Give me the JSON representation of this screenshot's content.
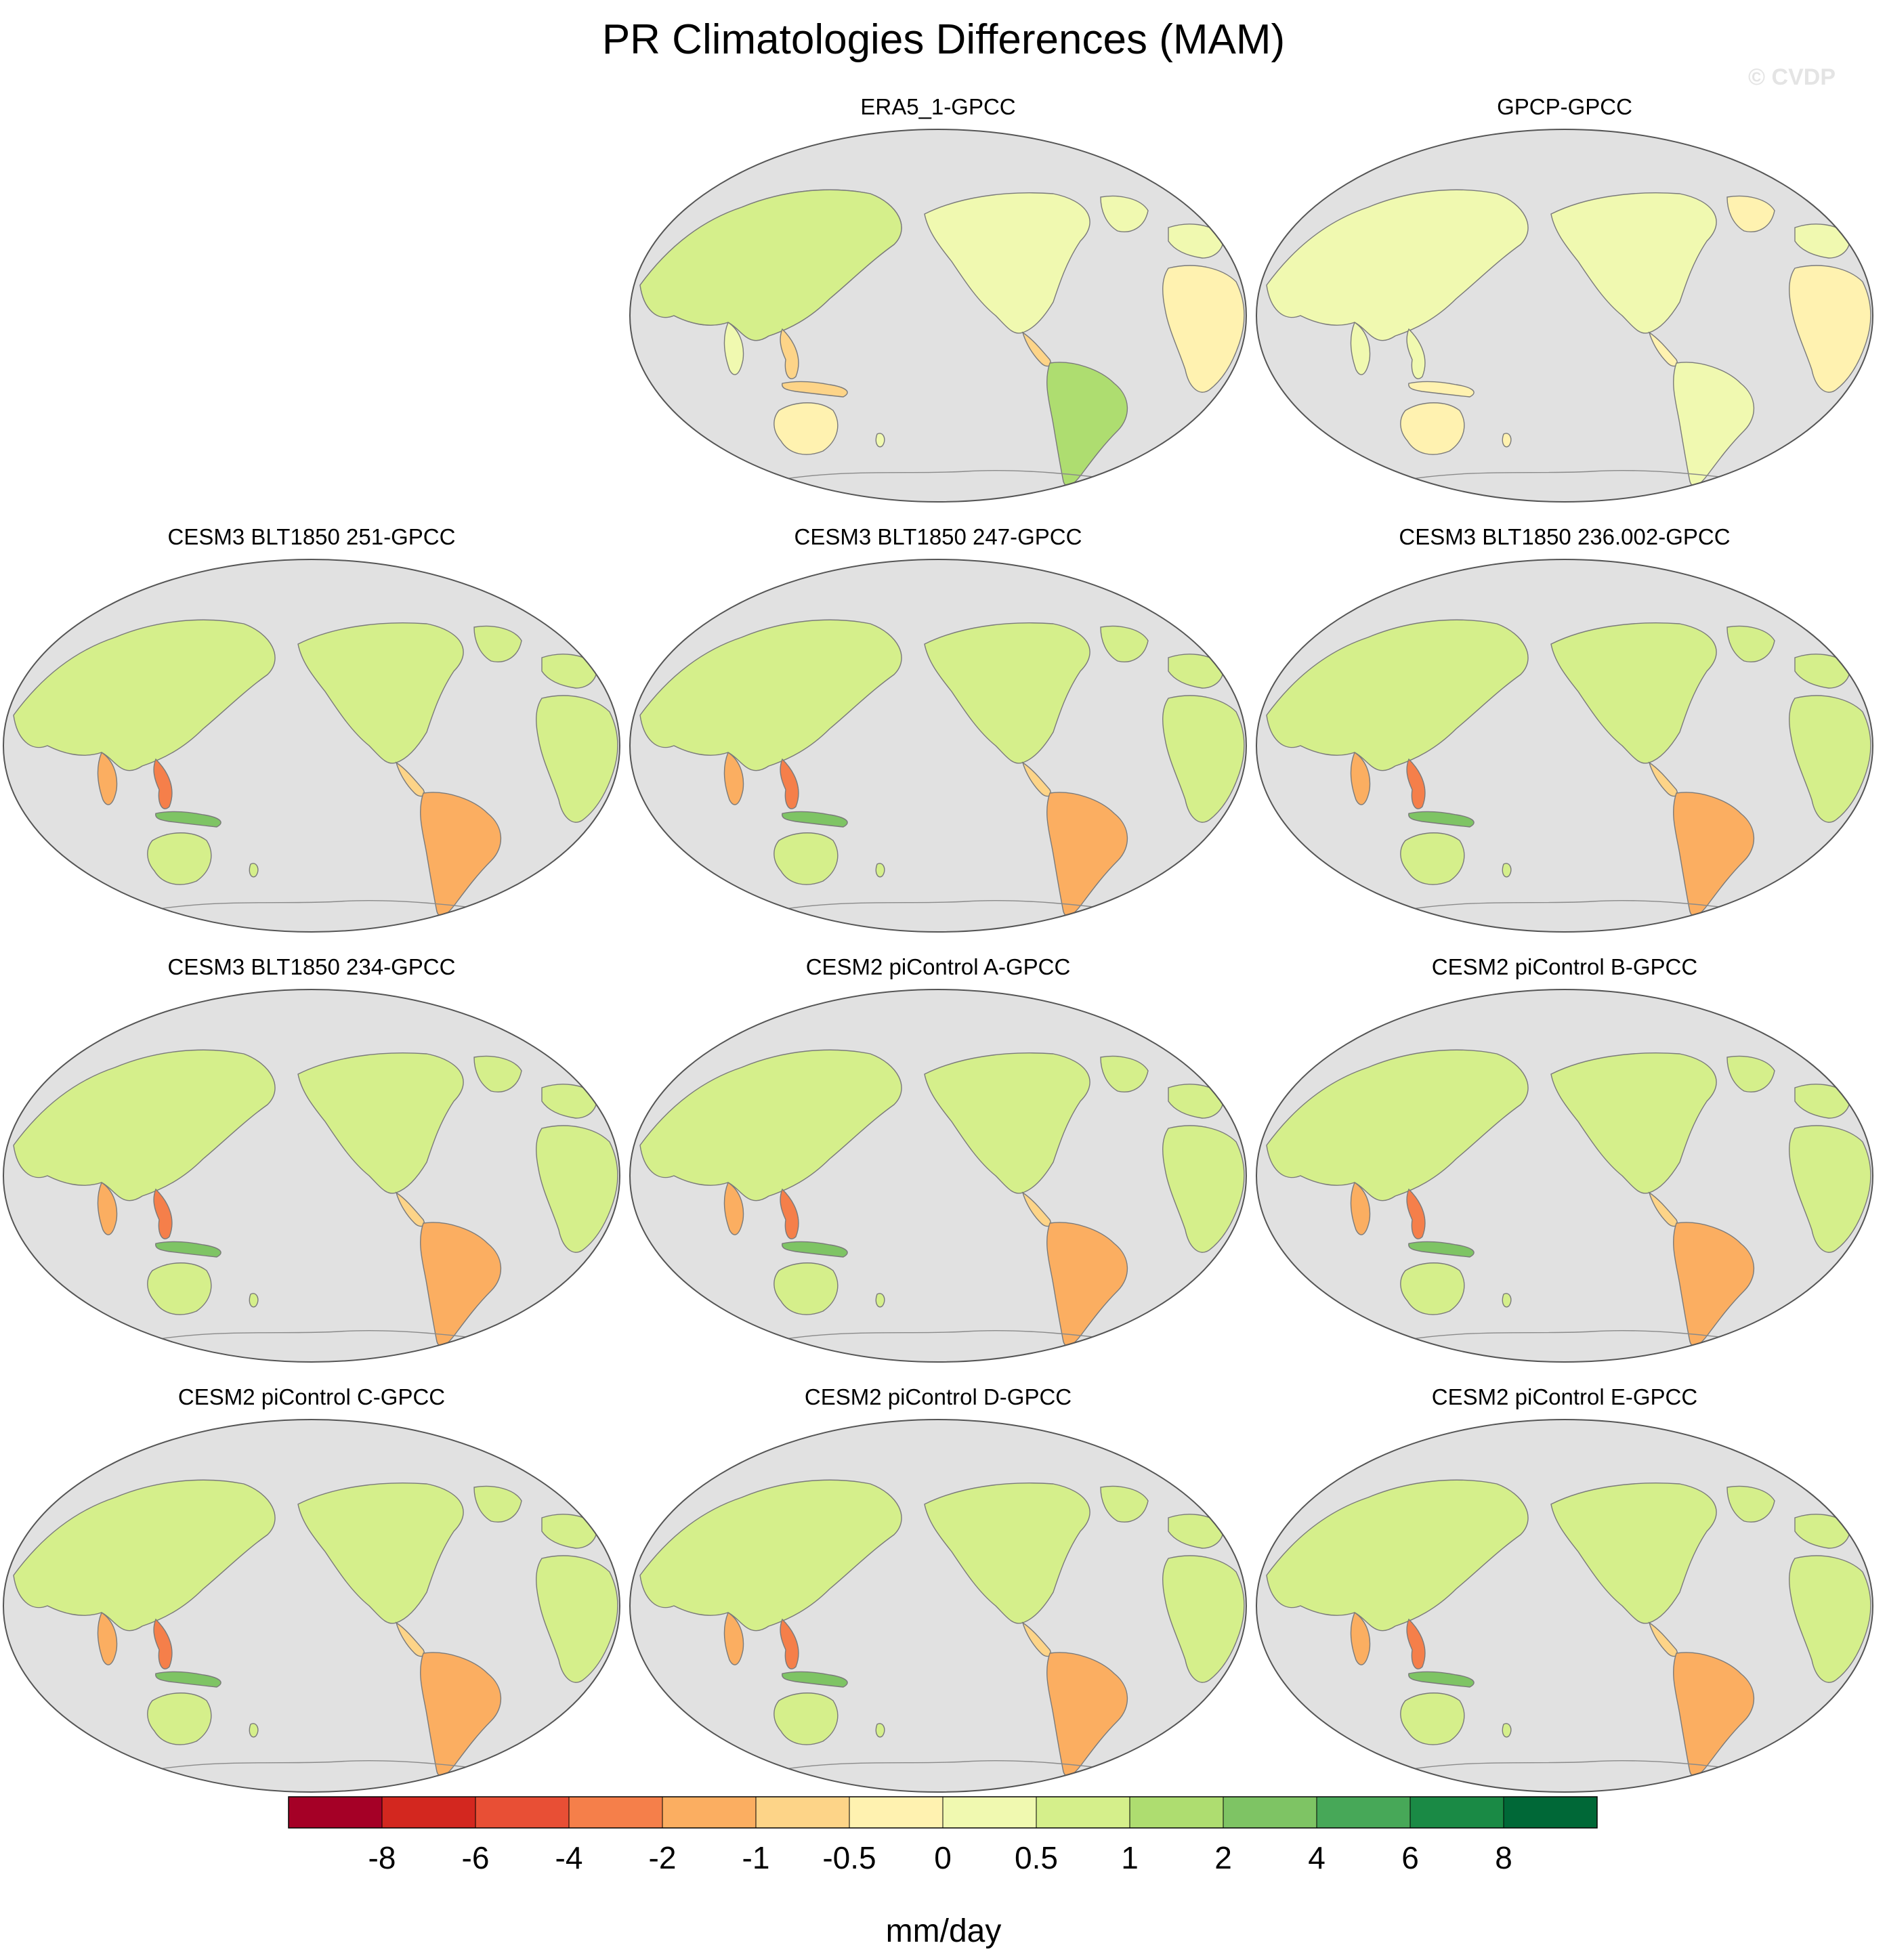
{
  "title": "PR Climatologies Differences (MAM)",
  "watermark": "© CVDP",
  "panels": [
    {
      "label": "ERA5_1-GPCC",
      "ocean_color": "#e1e1e1"
    },
    {
      "label": "GPCP-GPCC",
      "ocean_color": "#e1e1e1"
    },
    {
      "label": "CESM3 BLT1850 251-GPCC",
      "ocean_color": "#e1e1e1"
    },
    {
      "label": "CESM3 BLT1850 247-GPCC",
      "ocean_color": "#e1e1e1"
    },
    {
      "label": "CESM3 BLT1850 236.002-GPCC",
      "ocean_color": "#e1e1e1"
    },
    {
      "label": "CESM3 BLT1850 234-GPCC",
      "ocean_color": "#e1e1e1"
    },
    {
      "label": "CESM2 piControl A-GPCC",
      "ocean_color": "#e1e1e1"
    },
    {
      "label": "CESM2 piControl B-GPCC",
      "ocean_color": "#e1e1e1"
    },
    {
      "label": "CESM2 piControl C-GPCC",
      "ocean_color": "#e1e1e1"
    },
    {
      "label": "CESM2 piControl D-GPCC",
      "ocean_color": "#e1e1e1"
    },
    {
      "label": "CESM2 piControl E-GPCC",
      "ocean_color": "#e1e1e1"
    }
  ],
  "colorbar": {
    "unit": "mm/day",
    "ticks": [
      "-8",
      "-6",
      "-4",
      "-2",
      "-1",
      "-0.5",
      "0",
      "0.5",
      "1",
      "2",
      "4",
      "6",
      "8"
    ],
    "colors": [
      "#a50026",
      "#d3271f",
      "#e84f35",
      "#f57f4a",
      "#fbae61",
      "#fdd488",
      "#fff2b0",
      "#f0f9b0",
      "#d5ef8b",
      "#aedd70",
      "#7ec464",
      "#47a858",
      "#1a8a45",
      "#006837"
    ]
  }
}
